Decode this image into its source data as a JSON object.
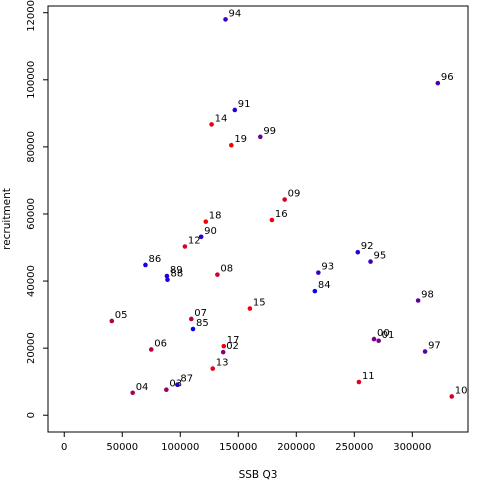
{
  "chart_data": {
    "type": "scatter",
    "xlabel": "SSB Q3",
    "ylabel": "recruitment",
    "xlim": [
      -14000,
      348000
    ],
    "ylim": [
      -5000,
      122000
    ],
    "xticks": [
      0,
      50000,
      100000,
      150000,
      200000,
      250000,
      300000
    ],
    "yticks": [
      0,
      20000,
      40000,
      60000,
      80000,
      100000,
      120000
    ],
    "grid": false,
    "color_low": "#ff0000",
    "color_high": "#0000ff",
    "points": [
      {
        "label": "84",
        "x": 216000,
        "y": 37000,
        "c": 0.95
      },
      {
        "label": "85",
        "x": 111000,
        "y": 25700,
        "c": 0.95
      },
      {
        "label": "86",
        "x": 70000,
        "y": 44800,
        "c": 0.92
      },
      {
        "label": "87",
        "x": 97500,
        "y": 9100,
        "c": 0.9
      },
      {
        "label": "88",
        "x": 89000,
        "y": 40400,
        "c": 0.9
      },
      {
        "label": "89",
        "x": 88500,
        "y": 41500,
        "c": 0.88
      },
      {
        "label": "90",
        "x": 118000,
        "y": 53200,
        "c": 0.85
      },
      {
        "label": "91",
        "x": 147000,
        "y": 91000,
        "c": 0.85
      },
      {
        "label": "92",
        "x": 253000,
        "y": 48600,
        "c": 0.82
      },
      {
        "label": "93",
        "x": 219000,
        "y": 42500,
        "c": 0.78
      },
      {
        "label": "94",
        "x": 139000,
        "y": 118000,
        "c": 0.78
      },
      {
        "label": "95",
        "x": 264000,
        "y": 45800,
        "c": 0.74
      },
      {
        "label": "96",
        "x": 322000,
        "y": 99000,
        "c": 0.7
      },
      {
        "label": "97",
        "x": 311000,
        "y": 19000,
        "c": 0.68
      },
      {
        "label": "98",
        "x": 305000,
        "y": 34200,
        "c": 0.63
      },
      {
        "label": "99",
        "x": 169000,
        "y": 83000,
        "c": 0.6
      },
      {
        "label": "00",
        "x": 267000,
        "y": 22700,
        "c": 0.55
      },
      {
        "label": "01",
        "x": 271000,
        "y": 22200,
        "c": 0.5
      },
      {
        "label": "02",
        "x": 137000,
        "y": 18800,
        "c": 0.45
      },
      {
        "label": "03",
        "x": 88000,
        "y": 7600,
        "c": 0.4
      },
      {
        "label": "04",
        "x": 59000,
        "y": 6700,
        "c": 0.35
      },
      {
        "label": "05",
        "x": 41000,
        "y": 28100,
        "c": 0.3
      },
      {
        "label": "06",
        "x": 75000,
        "y": 19600,
        "c": 0.28
      },
      {
        "label": "07",
        "x": 109500,
        "y": 28700,
        "c": 0.25
      },
      {
        "label": "08",
        "x": 132000,
        "y": 41900,
        "c": 0.2
      },
      {
        "label": "09",
        "x": 190000,
        "y": 64300,
        "c": 0.18
      },
      {
        "label": "10",
        "x": 334000,
        "y": 5600,
        "c": 0.15
      },
      {
        "label": "11",
        "x": 254000,
        "y": 9900,
        "c": 0.12
      },
      {
        "label": "12",
        "x": 104000,
        "y": 50300,
        "c": 0.12
      },
      {
        "label": "13",
        "x": 128000,
        "y": 13900,
        "c": 0.1
      },
      {
        "label": "14",
        "x": 127000,
        "y": 86700,
        "c": 0.08
      },
      {
        "label": "15",
        "x": 160000,
        "y": 31800,
        "c": 0.06
      },
      {
        "label": "16",
        "x": 179000,
        "y": 58200,
        "c": 0.05
      },
      {
        "label": "17",
        "x": 137500,
        "y": 20600,
        "c": 0.04
      },
      {
        "label": "18",
        "x": 122000,
        "y": 57700,
        "c": 0.03
      },
      {
        "label": "19",
        "x": 144000,
        "y": 80500,
        "c": 0.02
      }
    ]
  }
}
